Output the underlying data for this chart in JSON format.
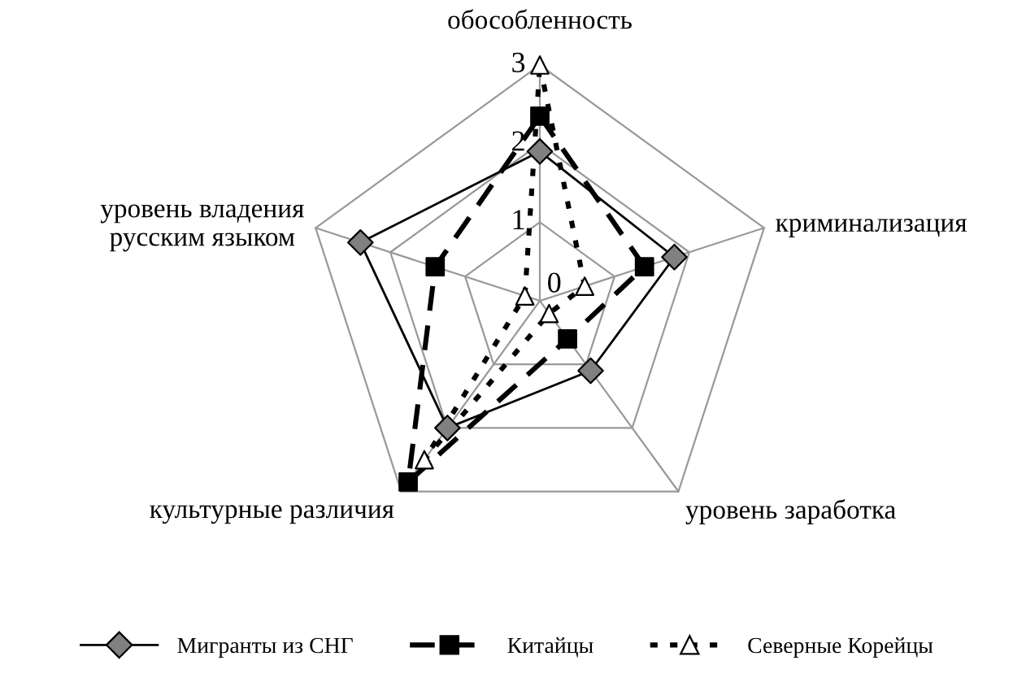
{
  "chart_data": {
    "type": "radar",
    "categories": [
      "обособленность",
      "криминализация",
      "уровень заработка",
      "культурные различия",
      "уровень владения\nрусским языком"
    ],
    "ylim": [
      0,
      3
    ],
    "yticks": [
      0,
      1,
      2,
      3
    ],
    "grid": true,
    "legend": "bottom",
    "series": [
      {
        "name": "Мигранты из СНГ",
        "color": "#000000",
        "colors": [
          "#808080",
          "#808080",
          "#808080",
          "#808080",
          "#808080"
        ],
        "marker": "diamond",
        "line_style": "solid",
        "values": [
          1.9,
          1.8,
          1.1,
          2.0,
          2.4
        ]
      },
      {
        "name": "Китайцы",
        "color": "#000000",
        "colors": [
          "#000000",
          "#000000",
          "#000000",
          "#000000",
          "#000000"
        ],
        "marker": "square",
        "line_style": "dashed",
        "values": [
          2.35,
          1.4,
          0.6,
          2.85,
          1.4
        ]
      },
      {
        "name": "Северные Корейцы",
        "color": "#000000",
        "colors": [
          "#ffffff",
          "#ffffff",
          "#ffffff",
          "#ffffff",
          "#ffffff"
        ],
        "marker": "triangle",
        "line_style": "dotted",
        "values": [
          3.0,
          0.6,
          0.2,
          2.5,
          0.2
        ]
      }
    ]
  }
}
